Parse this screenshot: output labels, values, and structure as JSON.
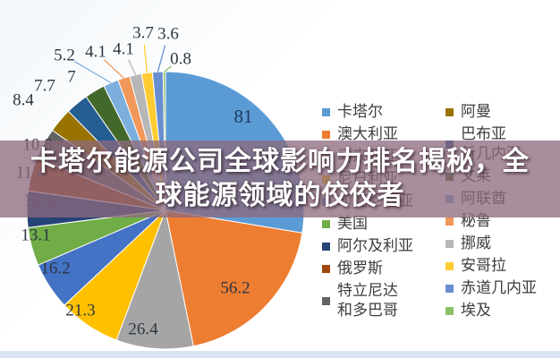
{
  "title": {
    "text": "卡塔尔能源公司全球影响力排名揭秘，全球能源领域的佼佼者",
    "lines": [
      "卡塔尔能源公司全球影响力排名揭秘，全",
      "球能源领域的佼佼者"
    ]
  },
  "colors": {
    "banner_overlay": "rgba(141,105,125,0.76)",
    "bottom_strip": "#D9E6F2",
    "title_text": "#FFFFFF"
  },
  "chart_data": {
    "type": "pie",
    "legend_position": "right",
    "show_data_labels": true,
    "items": [
      {
        "name": "卡塔尔",
        "value": 81,
        "color": "#5B9BD5"
      },
      {
        "name": "澳大利亚",
        "value": 56.2,
        "color": "#ED7D31"
      },
      {
        "name": "马来西亚",
        "value": 26.4,
        "color": "#A5A5A5"
      },
      {
        "name": "尼日利亚",
        "value": 21.3,
        "color": "#FFC000"
      },
      {
        "name": "印度尼西亚",
        "value": 16.2,
        "color": "#4472C4"
      },
      {
        "name": "美国",
        "value": 13.1,
        "color": "#70AD47"
      },
      {
        "name": "阿尔及利亚",
        "value": 12.4,
        "color": "#264478"
      },
      {
        "name": "俄罗斯",
        "value": 11.4,
        "color": "#9E480E"
      },
      {
        "name": "特立尼达和多巴哥",
        "value": 10.8,
        "color": "#636363",
        "legend_label": "特立尼达\n和多巴哥"
      },
      {
        "name": "阿曼",
        "value": 8.4,
        "color": "#997300"
      },
      {
        "name": "巴布亚新几内亚",
        "value": 7.7,
        "color": "#255E91",
        "legend_label": "巴布亚\n新几内亚"
      },
      {
        "name": "文莱",
        "value": 7,
        "color": "#43682B"
      },
      {
        "name": "阿联酋",
        "value": 5.2,
        "color": "#7CAFDD"
      },
      {
        "name": "秘鲁",
        "value": 4.1,
        "color": "#F1975A"
      },
      {
        "name": "挪威",
        "value": 4.1,
        "color": "#B7B7B7"
      },
      {
        "name": "安哥拉",
        "value": 3.7,
        "color": "#FFCD33"
      },
      {
        "name": "赤道几内亚",
        "value": 3.6,
        "color": "#698ED0"
      },
      {
        "name": "埃及",
        "value": 0.8,
        "color": "#8CC168"
      }
    ]
  }
}
